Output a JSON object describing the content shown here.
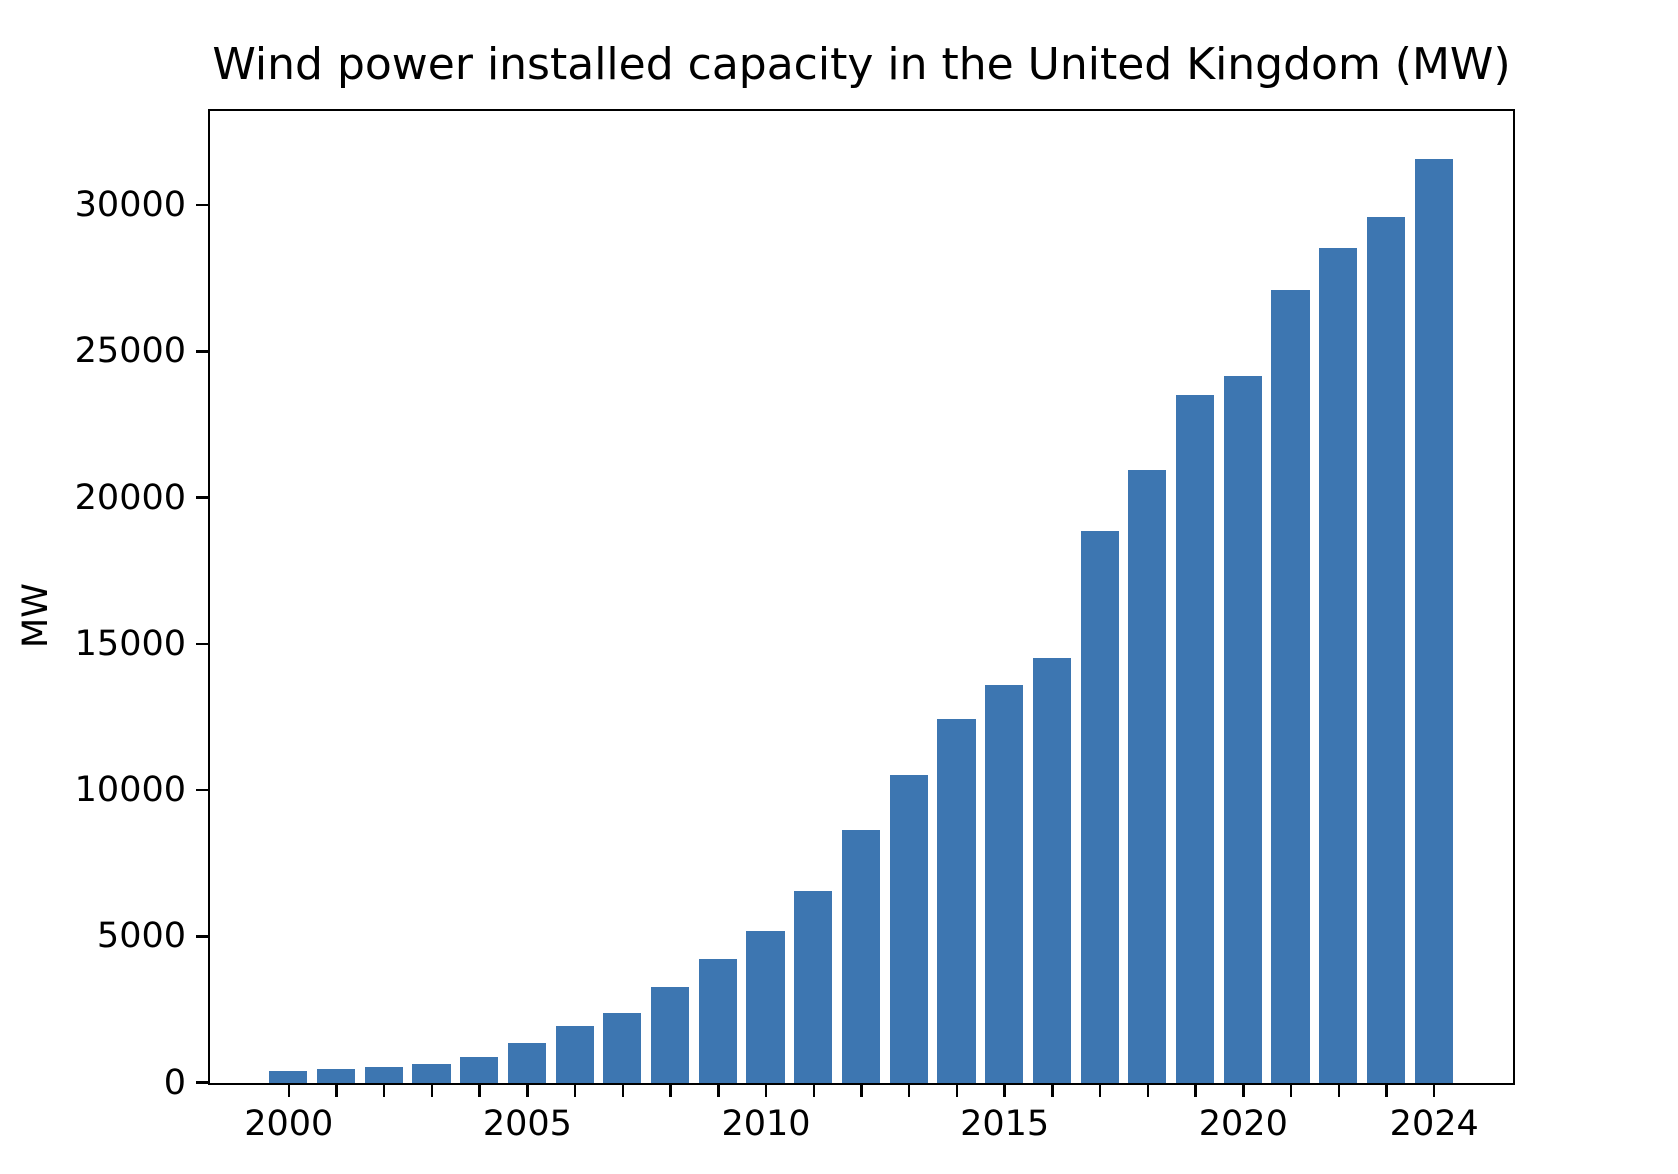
{
  "chart_data": {
    "type": "bar",
    "title": "Wind power installed capacity in the United Kingdom (MW)",
    "xlabel": "",
    "ylabel": "MW",
    "categories": [
      2000,
      2001,
      2002,
      2003,
      2004,
      2005,
      2006,
      2007,
      2008,
      2009,
      2010,
      2011,
      2012,
      2013,
      2014,
      2015,
      2016,
      2017,
      2018,
      2019,
      2020,
      2021,
      2022,
      2023,
      2024
    ],
    "values": [
      406,
      474,
      552,
      648,
      888,
      1353,
      1963,
      2389,
      3288,
      4245,
      5204,
      6556,
      8649,
      10531,
      12440,
      13602,
      14543,
      18872,
      20964,
      23515,
      24167,
      27130,
      28537,
      29600,
      31600
    ],
    "yticks": [
      0,
      5000,
      10000,
      15000,
      20000,
      25000,
      30000
    ],
    "xtick_labeled_years": [
      2000,
      2005,
      2010,
      2015,
      2020,
      2024
    ],
    "ylim": [
      0,
      33200
    ],
    "xlim": [
      1998.36,
      2025.64
    ],
    "bar_width_units": 0.8,
    "bar_color": "#3D76B1",
    "spine_color": "#000000",
    "background_color": "#ffffff",
    "grid": false,
    "legend_position": "none"
  }
}
